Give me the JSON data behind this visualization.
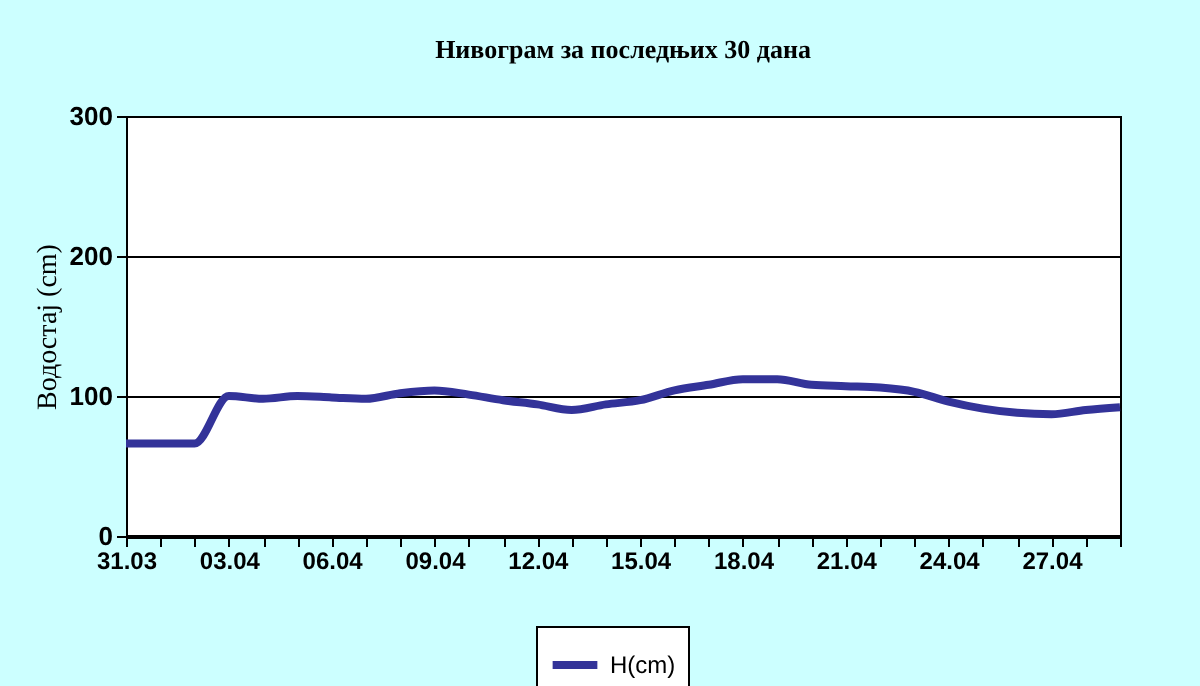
{
  "chart_data": {
    "type": "line",
    "title": "Нивограм за последњих 30 дана",
    "ylabel": "Водостај (cm)",
    "categories": [
      "31.03",
      null,
      null,
      "03.04",
      null,
      null,
      "06.04",
      null,
      null,
      "09.04",
      null,
      null,
      "12.04",
      null,
      null,
      "15.04",
      null,
      null,
      "18.04",
      null,
      null,
      "21.04",
      null,
      null,
      "24.04",
      null,
      null,
      "27.04",
      null,
      null
    ],
    "series": [
      {
        "name": "H(cm)",
        "color": "#333399",
        "values": [
          66,
          66,
          66,
          100,
          98,
          100,
          99,
          98,
          102,
          104,
          101,
          97,
          94,
          90,
          94,
          97,
          104,
          108,
          112,
          112,
          108,
          107,
          106,
          103,
          96,
          91,
          88,
          87,
          90,
          92
        ]
      }
    ],
    "ylim": [
      0,
      300
    ],
    "yticks": [
      0,
      100,
      200,
      300
    ],
    "grid": "y",
    "legend": "bottom",
    "marker": "none",
    "line_style": "solid"
  }
}
